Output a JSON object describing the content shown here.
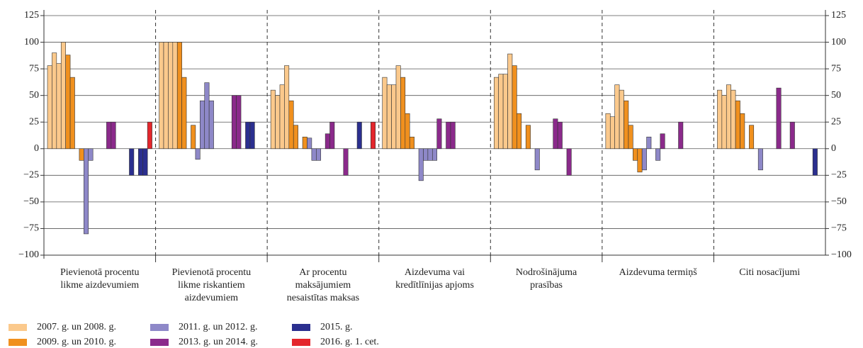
{
  "chart_data": {
    "type": "bar",
    "categories": [
      [
        "Pievienotā procentu",
        "likme aizdevumiem"
      ],
      [
        "Pievienotā procentu",
        "likme riskantiem",
        "aizdevumiem"
      ],
      [
        "Ar procentu",
        "maksājumiem",
        "nesaistītas maksas"
      ],
      [
        "Aizdevuma vai",
        "kredītlīnijas apjoms"
      ],
      [
        "Nodrošinājuma",
        "prasības"
      ],
      [
        "Aizdevuma termiņš"
      ],
      [
        "Citi nosacījumi"
      ]
    ],
    "series": [
      {
        "name": "2007. g. un 2008. g.",
        "color": "#fbc98c",
        "values": [
          [
            78,
            90,
            80,
            100
          ],
          [
            100,
            100,
            100,
            100
          ],
          [
            55,
            50,
            60,
            78
          ],
          [
            67,
            60,
            60,
            78
          ],
          [
            67,
            70,
            70,
            89
          ],
          [
            33,
            30,
            60,
            55
          ],
          [
            55,
            50,
            60,
            55
          ]
        ]
      },
      {
        "name": "2009. g. un 2010. g.",
        "color": "#f0901e",
        "values": [
          [
            88,
            67,
            0,
            -11
          ],
          [
            100,
            67,
            0,
            22
          ],
          [
            45,
            22,
            0,
            11
          ],
          [
            67,
            33,
            11,
            0
          ],
          [
            78,
            33,
            0,
            22
          ],
          [
            45,
            22,
            -11,
            -22
          ],
          [
            45,
            33,
            0,
            22
          ]
        ]
      },
      {
        "name": "2011. g. un 2012. g.",
        "color": "#8e88c8",
        "values": [
          [
            -80,
            -11,
            0,
            0
          ],
          [
            -10,
            45,
            62,
            45
          ],
          [
            10,
            -11,
            -11,
            0
          ],
          [
            -30,
            -11,
            -11,
            -11
          ],
          [
            0,
            -20,
            0,
            0
          ],
          [
            -20,
            11,
            0,
            -11
          ],
          [
            0,
            -20,
            0,
            0
          ]
        ]
      },
      {
        "name": "2013. g. un 2014. g.",
        "color": "#8b2a8b",
        "values": [
          [
            0,
            25,
            25,
            0,
            0,
            0
          ],
          [
            0,
            0,
            0,
            0,
            50,
            50
          ],
          [
            14,
            25,
            0,
            0,
            -25,
            0
          ],
          [
            28,
            0,
            25,
            25,
            0,
            0
          ],
          [
            0,
            28,
            25,
            0,
            -25,
            0
          ],
          [
            14,
            0,
            0,
            0,
            25,
            0
          ],
          [
            0,
            57,
            0,
            0,
            25,
            0
          ]
        ]
      },
      {
        "name": "2015. g.",
        "color": "#2b2f8f",
        "values": [
          [
            -25,
            0,
            -25,
            -25
          ],
          [
            0,
            25,
            25,
            0
          ],
          [
            0,
            25,
            0,
            0
          ],
          [
            0,
            0,
            0,
            0
          ],
          [
            0,
            0,
            0,
            0
          ],
          [
            0,
            0,
            0,
            0
          ],
          [
            0,
            0,
            0,
            -25
          ]
        ]
      },
      {
        "name": "2016. g. 1. cet.",
        "color": "#e4262c",
        "values": [
          [
            25
          ],
          [
            0
          ],
          [
            25
          ],
          [
            0
          ],
          [
            0
          ],
          [
            0
          ],
          [
            0
          ]
        ]
      }
    ],
    "ylim": [
      -100,
      125
    ],
    "yticks": [
      {
        "value": -100,
        "label": "−100"
      },
      {
        "value": -75,
        "label": "−75"
      },
      {
        "value": -50,
        "label": "−50"
      },
      {
        "value": -25,
        "label": "−25"
      },
      0,
      25,
      50,
      75,
      100,
      125
    ],
    "grid": true
  }
}
